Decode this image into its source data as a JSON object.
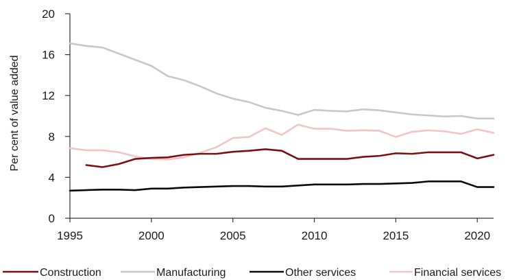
{
  "chart_data": {
    "type": "line",
    "title": "",
    "xlabel": "",
    "ylabel": "Per cent of value added",
    "xlim": [
      1995,
      2021
    ],
    "ylim": [
      0,
      20
    ],
    "x_ticks": [
      1995,
      2000,
      2005,
      2010,
      2015,
      2020
    ],
    "x_tick_labels": [
      "1995",
      "2000",
      "2005",
      "2010",
      "2015",
      "2020"
    ],
    "y_ticks": [
      0,
      4,
      8,
      12,
      16,
      20
    ],
    "y_tick_labels": [
      "0",
      "4",
      "8",
      "12",
      "16",
      "20"
    ],
    "grid": false,
    "legend_position": "bottom",
    "series": [
      {
        "name": "Construction",
        "color": "#7a0f14",
        "x": [
          1996,
          1997,
          1998,
          1999,
          2000,
          2001,
          2002,
          2003,
          2004,
          2005,
          2006,
          2007,
          2008,
          2009,
          2010,
          2011,
          2012,
          2013,
          2014,
          2015,
          2016,
          2017,
          2018,
          2019,
          2020,
          2021
        ],
        "values": [
          5.2,
          5.0,
          5.3,
          5.8,
          5.9,
          5.95,
          6.2,
          6.3,
          6.3,
          6.5,
          6.6,
          6.75,
          6.6,
          5.8,
          5.8,
          5.8,
          5.8,
          6.0,
          6.1,
          6.35,
          6.3,
          6.45,
          6.45,
          6.45,
          5.85,
          6.2
        ]
      },
      {
        "name": "Manufacturing",
        "color": "#c8c8c8",
        "x": [
          1995,
          1996,
          1997,
          1998,
          1999,
          2000,
          2001,
          2002,
          2003,
          2004,
          2005,
          2006,
          2007,
          2008,
          2009,
          2010,
          2011,
          2012,
          2013,
          2014,
          2015,
          2016,
          2017,
          2018,
          2019,
          2020,
          2021
        ],
        "values": [
          17.1,
          16.85,
          16.7,
          16.1,
          15.5,
          14.9,
          13.9,
          13.5,
          12.9,
          12.2,
          11.7,
          11.35,
          10.8,
          10.5,
          10.1,
          10.6,
          10.5,
          10.45,
          10.65,
          10.55,
          10.35,
          10.15,
          10.05,
          9.95,
          10.0,
          9.75,
          9.75
        ]
      },
      {
        "name": "Other services",
        "color": "#0a0a0a",
        "x": [
          1995,
          1996,
          1997,
          1998,
          1999,
          2000,
          2001,
          2002,
          2003,
          2004,
          2005,
          2006,
          2007,
          2008,
          2009,
          2010,
          2011,
          2012,
          2013,
          2014,
          2015,
          2016,
          2017,
          2018,
          2019,
          2020,
          2021
        ],
        "values": [
          2.7,
          2.75,
          2.8,
          2.8,
          2.75,
          2.9,
          2.9,
          3.0,
          3.05,
          3.1,
          3.15,
          3.15,
          3.1,
          3.1,
          3.2,
          3.3,
          3.3,
          3.3,
          3.35,
          3.35,
          3.4,
          3.45,
          3.6,
          3.6,
          3.6,
          3.05,
          3.05
        ]
      },
      {
        "name": "Financial services",
        "color": "#f2c4c4",
        "x": [
          1995,
          1996,
          1997,
          1998,
          1999,
          2000,
          2001,
          2002,
          2003,
          2004,
          2005,
          2006,
          2007,
          2008,
          2009,
          2010,
          2011,
          2012,
          2013,
          2014,
          2015,
          2016,
          2017,
          2018,
          2019,
          2020,
          2021
        ],
        "values": [
          6.85,
          6.65,
          6.65,
          6.45,
          6.05,
          5.8,
          5.75,
          5.95,
          6.4,
          6.95,
          7.85,
          7.95,
          8.8,
          8.15,
          9.15,
          8.75,
          8.75,
          8.55,
          8.6,
          8.55,
          7.95,
          8.45,
          8.6,
          8.5,
          8.25,
          8.7,
          8.35
        ]
      }
    ]
  }
}
